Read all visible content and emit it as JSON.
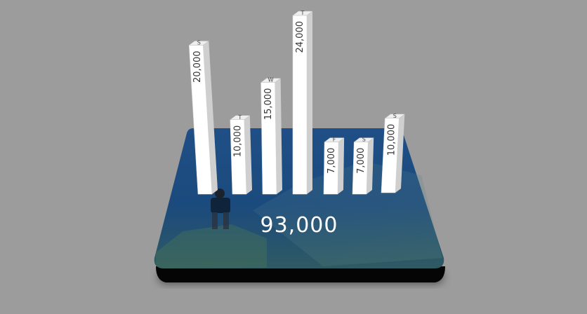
{
  "colors": {
    "background": "#9c9c9c",
    "platform": "#1f4f86",
    "platform_shadow": "#000000",
    "bar_face": "#ffffff",
    "bar_side": "#cfcfcf",
    "bar_top": "#eeeeee",
    "label_text": "#333333"
  },
  "summary": {
    "total_label": "93,000"
  },
  "chart_data": {
    "type": "bar",
    "categories": [
      "S",
      "T",
      "W",
      "T",
      "F",
      "S",
      "S"
    ],
    "values": [
      20000,
      10000,
      15000,
      24000,
      7000,
      7000,
      10000
    ],
    "value_labels": [
      "20,000",
      "10,000",
      "15,000",
      "24,000",
      "7,000",
      "7,000",
      "10,000"
    ],
    "title": "",
    "xlabel": "",
    "ylabel": "",
    "ylim": [
      0,
      24000
    ],
    "grid": false,
    "legend": "none"
  }
}
